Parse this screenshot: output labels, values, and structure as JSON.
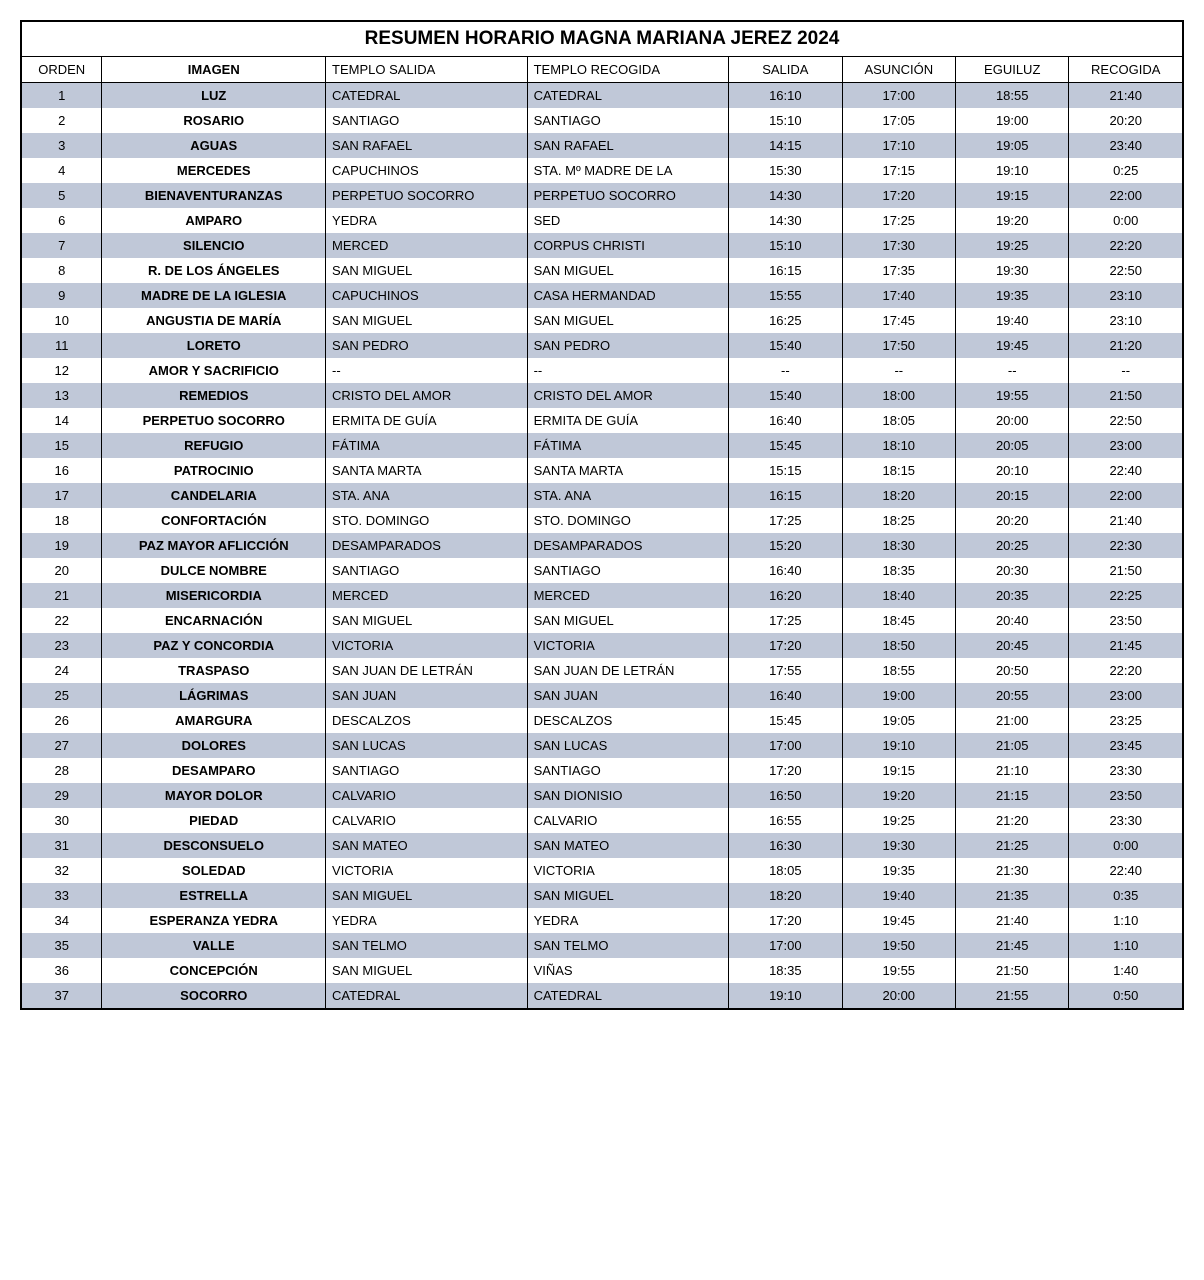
{
  "title": "RESUMEN HORARIO MAGNA MARIANA JEREZ 2024",
  "colors": {
    "odd_row_bg": "#c0c8d8",
    "even_row_bg": "#ffffff",
    "border": "#000000",
    "text": "#000000"
  },
  "columns": [
    "ORDEN",
    "IMAGEN",
    "TEMPLO SALIDA",
    "TEMPLO RECOGIDA",
    "SALIDA",
    "ASUNCIÓN",
    "EGUILUZ",
    "RECOGIDA"
  ],
  "rows": [
    {
      "orden": "1",
      "imagen": "LUZ",
      "salida_t": "CATEDRAL",
      "recogida_t": "CATEDRAL",
      "salida": "16:10",
      "asuncion": "17:00",
      "eguiluz": "18:55",
      "recogida": "21:40"
    },
    {
      "orden": "2",
      "imagen": "ROSARIO",
      "salida_t": "SANTIAGO",
      "recogida_t": "SANTIAGO",
      "salida": "15:10",
      "asuncion": "17:05",
      "eguiluz": "19:00",
      "recogida": "20:20"
    },
    {
      "orden": "3",
      "imagen": "AGUAS",
      "salida_t": "SAN RAFAEL",
      "recogida_t": "SAN RAFAEL",
      "salida": "14:15",
      "asuncion": "17:10",
      "eguiluz": "19:05",
      "recogida": "23:40"
    },
    {
      "orden": "4",
      "imagen": "MERCEDES",
      "salida_t": "CAPUCHINOS",
      "recogida_t": "STA. Mº MADRE DE LA",
      "salida": "15:30",
      "asuncion": "17:15",
      "eguiluz": "19:10",
      "recogida": "0:25"
    },
    {
      "orden": "5",
      "imagen": "BIENAVENTURANZAS",
      "salida_t": "PERPETUO SOCORRO",
      "recogida_t": "PERPETUO SOCORRO",
      "salida": "14:30",
      "asuncion": "17:20",
      "eguiluz": "19:15",
      "recogida": "22:00"
    },
    {
      "orden": "6",
      "imagen": "AMPARO",
      "salida_t": "YEDRA",
      "recogida_t": "SED",
      "salida": "14:30",
      "asuncion": "17:25",
      "eguiluz": "19:20",
      "recogida": "0:00"
    },
    {
      "orden": "7",
      "imagen": "SILENCIO",
      "salida_t": "MERCED",
      "recogida_t": "CORPUS CHRISTI",
      "salida": "15:10",
      "asuncion": "17:30",
      "eguiluz": "19:25",
      "recogida": "22:20"
    },
    {
      "orden": "8",
      "imagen": "R. DE LOS ÁNGELES",
      "salida_t": "SAN MIGUEL",
      "recogida_t": "SAN MIGUEL",
      "salida": "16:15",
      "asuncion": "17:35",
      "eguiluz": "19:30",
      "recogida": "22:50"
    },
    {
      "orden": "9",
      "imagen": "MADRE DE LA IGLESIA",
      "salida_t": "CAPUCHINOS",
      "recogida_t": "CASA HERMANDAD",
      "salida": "15:55",
      "asuncion": "17:40",
      "eguiluz": "19:35",
      "recogida": "23:10"
    },
    {
      "orden": "10",
      "imagen": "ANGUSTIA DE MARÍA",
      "salida_t": "SAN MIGUEL",
      "recogida_t": "SAN MIGUEL",
      "salida": "16:25",
      "asuncion": "17:45",
      "eguiluz": "19:40",
      "recogida": "23:10"
    },
    {
      "orden": "11",
      "imagen": "LORETO",
      "salida_t": "SAN PEDRO",
      "recogida_t": "SAN PEDRO",
      "salida": "15:40",
      "asuncion": "17:50",
      "eguiluz": "19:45",
      "recogida": "21:20"
    },
    {
      "orden": "12",
      "imagen": "AMOR Y SACRIFICIO",
      "salida_t": "--",
      "recogida_t": "--",
      "salida": "--",
      "asuncion": "--",
      "eguiluz": "--",
      "recogida": "--"
    },
    {
      "orden": "13",
      "imagen": "REMEDIOS",
      "salida_t": "CRISTO DEL AMOR",
      "recogida_t": "CRISTO DEL AMOR",
      "salida": "15:40",
      "asuncion": "18:00",
      "eguiluz": "19:55",
      "recogida": "21:50"
    },
    {
      "orden": "14",
      "imagen": "PERPETUO SOCORRO",
      "salida_t": "ERMITA DE GUÍA",
      "recogida_t": "ERMITA DE GUÍA",
      "salida": "16:40",
      "asuncion": "18:05",
      "eguiluz": "20:00",
      "recogida": "22:50"
    },
    {
      "orden": "15",
      "imagen": "REFUGIO",
      "salida_t": "FÁTIMA",
      "recogida_t": "FÁTIMA",
      "salida": "15:45",
      "asuncion": "18:10",
      "eguiluz": "20:05",
      "recogida": "23:00"
    },
    {
      "orden": "16",
      "imagen": "PATROCINIO",
      "salida_t": "SANTA MARTA",
      "recogida_t": "SANTA MARTA",
      "salida": "15:15",
      "asuncion": "18:15",
      "eguiluz": "20:10",
      "recogida": "22:40"
    },
    {
      "orden": "17",
      "imagen": "CANDELARIA",
      "salida_t": "STA. ANA",
      "recogida_t": "STA. ANA",
      "salida": "16:15",
      "asuncion": "18:20",
      "eguiluz": "20:15",
      "recogida": "22:00"
    },
    {
      "orden": "18",
      "imagen": "CONFORTACIÓN",
      "salida_t": "STO. DOMINGO",
      "recogida_t": "STO. DOMINGO",
      "salida": "17:25",
      "asuncion": "18:25",
      "eguiluz": "20:20",
      "recogida": "21:40"
    },
    {
      "orden": "19",
      "imagen": "PAZ MAYOR AFLICCIÓN",
      "salida_t": "DESAMPARADOS",
      "recogida_t": "DESAMPARADOS",
      "salida": "15:20",
      "asuncion": "18:30",
      "eguiluz": "20:25",
      "recogida": "22:30"
    },
    {
      "orden": "20",
      "imagen": "DULCE NOMBRE",
      "salida_t": "SANTIAGO",
      "recogida_t": "SANTIAGO",
      "salida": "16:40",
      "asuncion": "18:35",
      "eguiluz": "20:30",
      "recogida": "21:50"
    },
    {
      "orden": "21",
      "imagen": "MISERICORDIA",
      "salida_t": "MERCED",
      "recogida_t": "MERCED",
      "salida": "16:20",
      "asuncion": "18:40",
      "eguiluz": "20:35",
      "recogida": "22:25"
    },
    {
      "orden": "22",
      "imagen": "ENCARNACIÓN",
      "salida_t": "SAN MIGUEL",
      "recogida_t": "SAN MIGUEL",
      "salida": "17:25",
      "asuncion": "18:45",
      "eguiluz": "20:40",
      "recogida": "23:50"
    },
    {
      "orden": "23",
      "imagen": "PAZ Y CONCORDIA",
      "salida_t": "VICTORIA",
      "recogida_t": "VICTORIA",
      "salida": "17:20",
      "asuncion": "18:50",
      "eguiluz": "20:45",
      "recogida": "21:45"
    },
    {
      "orden": "24",
      "imagen": "TRASPASO",
      "salida_t": "SAN JUAN DE LETRÁN",
      "recogida_t": "SAN JUAN DE LETRÁN",
      "salida": "17:55",
      "asuncion": "18:55",
      "eguiluz": "20:50",
      "recogida": "22:20"
    },
    {
      "orden": "25",
      "imagen": "LÁGRIMAS",
      "salida_t": "SAN JUAN",
      "recogida_t": "SAN JUAN",
      "salida": "16:40",
      "asuncion": "19:00",
      "eguiluz": "20:55",
      "recogida": "23:00"
    },
    {
      "orden": "26",
      "imagen": "AMARGURA",
      "salida_t": "DESCALZOS",
      "recogida_t": "DESCALZOS",
      "salida": "15:45",
      "asuncion": "19:05",
      "eguiluz": "21:00",
      "recogida": "23:25"
    },
    {
      "orden": "27",
      "imagen": "DOLORES",
      "salida_t": "SAN LUCAS",
      "recogida_t": "SAN LUCAS",
      "salida": "17:00",
      "asuncion": "19:10",
      "eguiluz": "21:05",
      "recogida": "23:45"
    },
    {
      "orden": "28",
      "imagen": "DESAMPARO",
      "salida_t": "SANTIAGO",
      "recogida_t": "SANTIAGO",
      "salida": "17:20",
      "asuncion": "19:15",
      "eguiluz": "21:10",
      "recogida": "23:30"
    },
    {
      "orden": "29",
      "imagen": "MAYOR DOLOR",
      "salida_t": "CALVARIO",
      "recogida_t": "SAN DIONISIO",
      "salida": "16:50",
      "asuncion": "19:20",
      "eguiluz": "21:15",
      "recogida": "23:50"
    },
    {
      "orden": "30",
      "imagen": "PIEDAD",
      "salida_t": "CALVARIO",
      "recogida_t": "CALVARIO",
      "salida": "16:55",
      "asuncion": "19:25",
      "eguiluz": "21:20",
      "recogida": "23:30"
    },
    {
      "orden": "31",
      "imagen": "DESCONSUELO",
      "salida_t": "SAN MATEO",
      "recogida_t": "SAN MATEO",
      "salida": "16:30",
      "asuncion": "19:30",
      "eguiluz": "21:25",
      "recogida": "0:00"
    },
    {
      "orden": "32",
      "imagen": "SOLEDAD",
      "salida_t": "VICTORIA",
      "recogida_t": "VICTORIA",
      "salida": "18:05",
      "asuncion": "19:35",
      "eguiluz": "21:30",
      "recogida": "22:40"
    },
    {
      "orden": "33",
      "imagen": "ESTRELLA",
      "salida_t": "SAN MIGUEL",
      "recogida_t": "SAN MIGUEL",
      "salida": "18:20",
      "asuncion": "19:40",
      "eguiluz": "21:35",
      "recogida": "0:35"
    },
    {
      "orden": "34",
      "imagen": "ESPERANZA YEDRA",
      "salida_t": "YEDRA",
      "recogida_t": "YEDRA",
      "salida": "17:20",
      "asuncion": "19:45",
      "eguiluz": "21:40",
      "recogida": "1:10"
    },
    {
      "orden": "35",
      "imagen": "VALLE",
      "salida_t": "SAN TELMO",
      "recogida_t": "SAN TELMO",
      "salida": "17:00",
      "asuncion": "19:50",
      "eguiluz": "21:45",
      "recogida": "1:10"
    },
    {
      "orden": "36",
      "imagen": "CONCEPCIÓN",
      "salida_t": "SAN MIGUEL",
      "recogida_t": "VIÑAS",
      "salida": "18:35",
      "asuncion": "19:55",
      "eguiluz": "21:50",
      "recogida": "1:40"
    },
    {
      "orden": "37",
      "imagen": "SOCORRO",
      "salida_t": "CATEDRAL",
      "recogida_t": "CATEDRAL",
      "salida": "19:10",
      "asuncion": "20:00",
      "eguiluz": "21:55",
      "recogida": "0:50"
    }
  ]
}
